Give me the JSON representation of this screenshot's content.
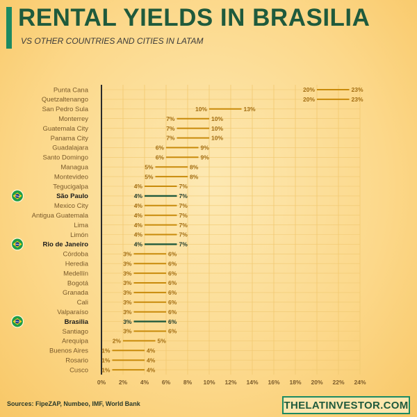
{
  "header": {
    "title": "RENTAL YIELDS IN BRASILIA",
    "subtitle": "VS OTHER COUNTRIES AND CITIES IN LATAM"
  },
  "footer": {
    "sources": "Sources: FipeZAP, Numbeo, IMF, World Bank",
    "brand": "THELATINVESTOR.COM"
  },
  "colors": {
    "range_line": "#c88a0a",
    "highlight_line": "#1f5a3c",
    "label_text": "#7a5a2a",
    "value_text": "#a26d12",
    "highlight_text": "#1f3a2a",
    "grid": "#f0c870",
    "axis": "#2b2b2b",
    "brand": "#1c8a62"
  },
  "chart_data": {
    "type": "range-dot",
    "x_tick_labels": [
      "0%",
      "2%",
      "4%",
      "6%",
      "8%",
      "10%",
      "12%",
      "14%",
      "16%",
      "18%",
      "20%",
      "22%",
      "24%"
    ],
    "xlim": [
      0,
      24
    ],
    "grid": true,
    "highlight_icon": "brazil-flag-icon",
    "rows": [
      {
        "city": "Punta Cana",
        "min": 20,
        "max": 23
      },
      {
        "city": "Quetzaltenango",
        "min": 20,
        "max": 23
      },
      {
        "city": "San Pedro Sula",
        "min": 10,
        "max": 13
      },
      {
        "city": "Monterrey",
        "min": 7,
        "max": 10
      },
      {
        "city": "Guatemala City",
        "min": 7,
        "max": 10
      },
      {
        "city": "Panama City",
        "min": 7,
        "max": 10
      },
      {
        "city": "Guadalajara",
        "min": 6,
        "max": 9
      },
      {
        "city": "Santo Domingo",
        "min": 6,
        "max": 9
      },
      {
        "city": "Managua",
        "min": 5,
        "max": 8
      },
      {
        "city": "Montevideo",
        "min": 5,
        "max": 8
      },
      {
        "city": "Tegucigalpa",
        "min": 4,
        "max": 7
      },
      {
        "city": "São Paulo",
        "min": 4,
        "max": 7,
        "highlight": true
      },
      {
        "city": "Mexico City",
        "min": 4,
        "max": 7
      },
      {
        "city": "Antigua Guatemala",
        "min": 4,
        "max": 7
      },
      {
        "city": "Lima",
        "min": 4,
        "max": 7
      },
      {
        "city": "Limón",
        "min": 4,
        "max": 7
      },
      {
        "city": "Rio de Janeiro",
        "min": 4,
        "max": 7,
        "highlight": true
      },
      {
        "city": "Córdoba",
        "min": 3,
        "max": 6
      },
      {
        "city": "Heredia",
        "min": 3,
        "max": 6
      },
      {
        "city": "Medellín",
        "min": 3,
        "max": 6
      },
      {
        "city": "Bogotá",
        "min": 3,
        "max": 6
      },
      {
        "city": "Granada",
        "min": 3,
        "max": 6
      },
      {
        "city": "Cali",
        "min": 3,
        "max": 6
      },
      {
        "city": "Valparaíso",
        "min": 3,
        "max": 6
      },
      {
        "city": "Brasilia",
        "min": 3,
        "max": 6,
        "highlight": true
      },
      {
        "city": "Santiago",
        "min": 3,
        "max": 6
      },
      {
        "city": "Arequipa",
        "min": 2,
        "max": 5
      },
      {
        "city": "Buenos Aires",
        "min": 1,
        "max": 4
      },
      {
        "city": "Rosario",
        "min": 1,
        "max": 4
      },
      {
        "city": "Cusco",
        "min": 1,
        "max": 4
      }
    ]
  }
}
